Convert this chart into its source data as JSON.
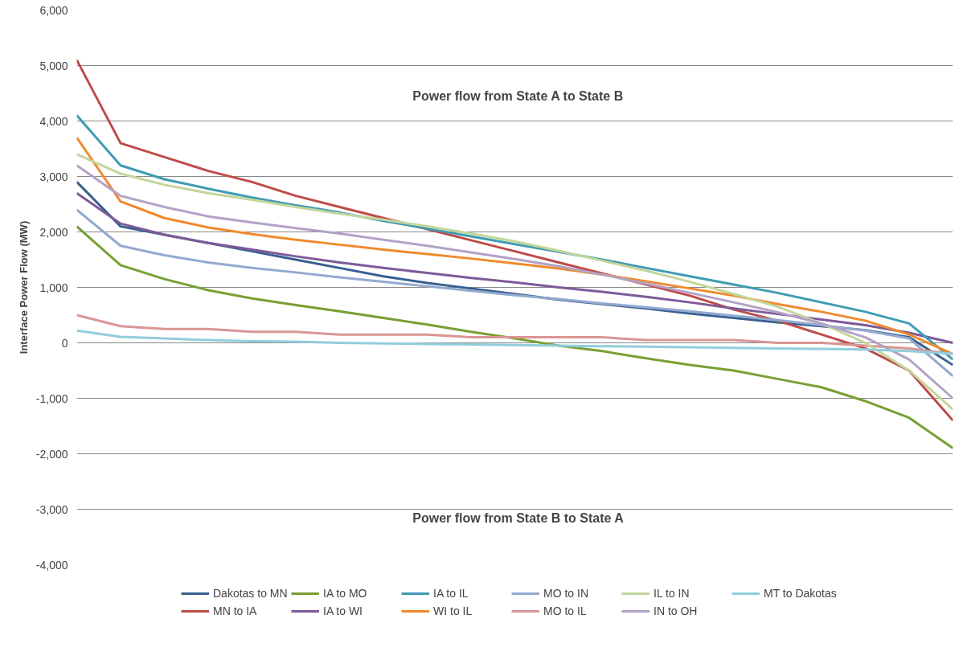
{
  "chart_data": {
    "type": "line",
    "ylabel": "Interface Power Flow (MW)",
    "annotations": [
      "Power flow from State A to State B",
      "Power flow from State B to State A"
    ],
    "categories": [
      null,
      null,
      null,
      null,
      null,
      null,
      null,
      null,
      null,
      null,
      null,
      null,
      null,
      null,
      null,
      null,
      null,
      null,
      null,
      null,
      null
    ],
    "ylim": [
      -4000,
      6000
    ],
    "yticks": [
      {
        "value": -4000,
        "label": "-4,000"
      },
      {
        "value": -3000,
        "label": "-3,000"
      },
      {
        "value": -2000,
        "label": "-2,000"
      },
      {
        "value": -1000,
        "label": "-1,000"
      },
      0,
      {
        "value": 1000,
        "label": "1,000"
      },
      {
        "value": 2000,
        "label": "2,000"
      },
      {
        "value": 3000,
        "label": "3,000"
      },
      {
        "value": 4000,
        "label": "4,000"
      },
      {
        "value": 5000,
        "label": "5,000"
      },
      {
        "value": 6000,
        "label": "6,000"
      }
    ],
    "grid": "y",
    "legend": "bottom",
    "tick_labels": "y",
    "marker": "none",
    "line_style": "solid",
    "series": [
      {
        "name": "Dakotas to MN",
        "color": "#376092",
        "values": [
          2900,
          2100,
          1950,
          1800,
          1650,
          1500,
          1350,
          1200,
          1080,
          980,
          880,
          780,
          700,
          620,
          530,
          450,
          370,
          300,
          230,
          100,
          -400
        ]
      },
      {
        "name": "MN to IA",
        "color": "#be4b48",
        "values": [
          5100,
          3600,
          3350,
          3100,
          2900,
          2650,
          2450,
          2250,
          2050,
          1850,
          1650,
          1450,
          1250,
          1050,
          850,
          600,
          400,
          150,
          -100,
          -500,
          -1400
        ]
      },
      {
        "name": "IA to MO",
        "color": "#77a033",
        "values": [
          2100,
          1400,
          1150,
          950,
          800,
          680,
          570,
          450,
          330,
          200,
          80,
          -50,
          -150,
          -280,
          -400,
          -500,
          -650,
          -800,
          -1050,
          -1350,
          -1900
        ]
      },
      {
        "name": "IA to WI",
        "color": "#7e5a99",
        "values": [
          2700,
          2150,
          1950,
          1800,
          1680,
          1560,
          1450,
          1350,
          1260,
          1170,
          1090,
          1000,
          920,
          830,
          730,
          620,
          520,
          420,
          320,
          180,
          0
        ]
      },
      {
        "name": "IA to IL",
        "color": "#3f9bb3",
        "values": [
          4100,
          3200,
          2950,
          2780,
          2620,
          2480,
          2350,
          2200,
          2060,
          1920,
          1780,
          1640,
          1500,
          1350,
          1200,
          1050,
          900,
          730,
          560,
          350,
          -300
        ]
      },
      {
        "name": "WI to IL",
        "color": "#f08a2d",
        "values": [
          3700,
          2550,
          2250,
          2080,
          1960,
          1860,
          1770,
          1680,
          1600,
          1520,
          1430,
          1340,
          1230,
          1110,
          980,
          850,
          700,
          560,
          400,
          150,
          -200
        ]
      },
      {
        "name": "MO to IN",
        "color": "#93a9cf",
        "values": [
          2400,
          1750,
          1580,
          1450,
          1350,
          1270,
          1180,
          1100,
          1020,
          940,
          860,
          790,
          710,
          640,
          570,
          490,
          410,
          320,
          220,
          80,
          -600
        ]
      },
      {
        "name": "MO to IL",
        "color": "#d99694",
        "values": [
          500,
          300,
          250,
          250,
          200,
          200,
          150,
          150,
          150,
          100,
          100,
          100,
          100,
          50,
          50,
          50,
          0,
          0,
          -50,
          -100,
          -200
        ]
      },
      {
        "name": "IL to IN",
        "color": "#c3d69b",
        "values": [
          3400,
          3050,
          2850,
          2700,
          2580,
          2450,
          2330,
          2220,
          2100,
          1970,
          1830,
          1660,
          1480,
          1300,
          1100,
          880,
          650,
          350,
          0,
          -500,
          -1200
        ]
      },
      {
        "name": "IN to OH",
        "color": "#b3a2c7",
        "values": [
          3200,
          2650,
          2450,
          2280,
          2170,
          2070,
          1970,
          1860,
          1750,
          1630,
          1510,
          1380,
          1230,
          1070,
          900,
          730,
          550,
          350,
          100,
          -300,
          -1000
        ]
      },
      {
        "name": "MT to Dakotas",
        "color": "#93cddd",
        "values": [
          220,
          110,
          80,
          50,
          30,
          20,
          0,
          -10,
          -20,
          -30,
          -40,
          -50,
          -60,
          -70,
          -80,
          -90,
          -100,
          -110,
          -120,
          -150,
          -200
        ]
      }
    ]
  }
}
